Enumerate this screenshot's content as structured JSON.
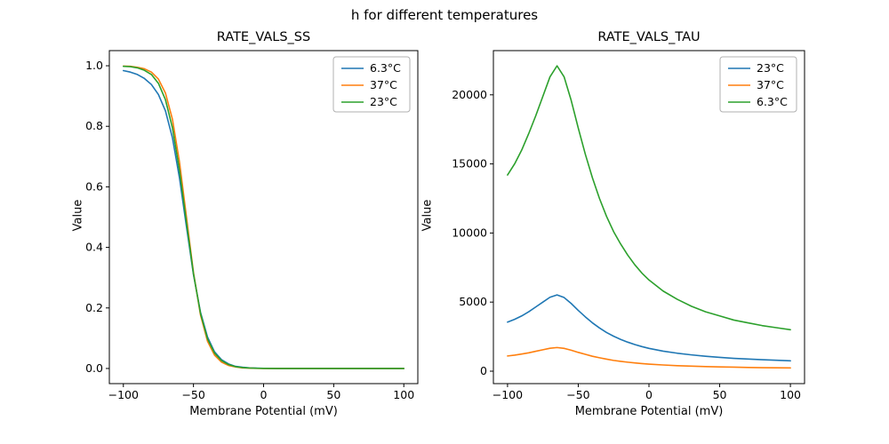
{
  "figure": {
    "title": "h for different temperatures",
    "background": "#ffffff"
  },
  "chart_data": [
    {
      "type": "line",
      "title": "RATE_VALS_SS",
      "xlabel": "Membrane Potential (mV)",
      "ylabel": "Value",
      "xlim": [
        -110,
        110
      ],
      "ylim": [
        -0.05,
        1.05
      ],
      "xticks": [
        -100,
        -50,
        0,
        50,
        100
      ],
      "xtick_labels": [
        "−100",
        "−50",
        "0",
        "50",
        "100"
      ],
      "yticks": [
        0.0,
        0.2,
        0.4,
        0.6,
        0.8,
        1.0
      ],
      "ytick_labels": [
        "0.0",
        "0.2",
        "0.4",
        "0.6",
        "0.8",
        "1.0"
      ],
      "legend_location": "upper right",
      "grid": false,
      "x": [
        -100,
        -95,
        -90,
        -85,
        -80,
        -75,
        -70,
        -65,
        -60,
        -55,
        -50,
        -45,
        -40,
        -35,
        -30,
        -25,
        -20,
        -15,
        -10,
        -5,
        0,
        10,
        20,
        30,
        40,
        50,
        60,
        70,
        80,
        90,
        100
      ],
      "series": [
        {
          "name": "6.3°C",
          "color": "#1f77b4",
          "values": [
            0.984,
            0.979,
            0.971,
            0.958,
            0.938,
            0.905,
            0.851,
            0.762,
            0.63,
            0.468,
            0.31,
            0.186,
            0.104,
            0.055,
            0.029,
            0.015,
            0.007,
            0.004,
            0.002,
            0.001,
            0.0005,
            0.0001,
            0,
            0,
            0,
            0,
            0,
            0,
            0,
            0,
            0
          ]
        },
        {
          "name": "37°C",
          "color": "#ff7f0e",
          "values": [
            0.999,
            0.998,
            0.995,
            0.99,
            0.979,
            0.956,
            0.91,
            0.823,
            0.683,
            0.5,
            0.317,
            0.177,
            0.09,
            0.044,
            0.021,
            0.01,
            0.005,
            0.002,
            0.001,
            0.0005,
            0.0002,
            0,
            0,
            0,
            0,
            0,
            0,
            0,
            0,
            0,
            0
          ]
        },
        {
          "name": "23°C",
          "color": "#2ca02c",
          "values": [
            0.998,
            0.997,
            0.993,
            0.985,
            0.971,
            0.942,
            0.888,
            0.795,
            0.655,
            0.482,
            0.313,
            0.182,
            0.098,
            0.051,
            0.026,
            0.013,
            0.006,
            0.003,
            0.0015,
            0.0007,
            0.0004,
            0.0001,
            0,
            0,
            0,
            0,
            0,
            0,
            0,
            0,
            0
          ]
        }
      ]
    },
    {
      "type": "line",
      "title": "RATE_VALS_TAU",
      "xlabel": "Membrane Potential (mV)",
      "ylabel": "Value",
      "xlim": [
        -110,
        110
      ],
      "ylim": [
        -900,
        23200
      ],
      "xticks": [
        -100,
        -50,
        0,
        50,
        100
      ],
      "xtick_labels": [
        "−100",
        "−50",
        "0",
        "50",
        "100"
      ],
      "yticks": [
        0,
        5000,
        10000,
        15000,
        20000
      ],
      "ytick_labels": [
        "0",
        "5000",
        "10000",
        "15000",
        "20000"
      ],
      "legend_location": "upper right",
      "grid": false,
      "x": [
        -100,
        -95,
        -90,
        -85,
        -80,
        -75,
        -70,
        -65,
        -60,
        -55,
        -50,
        -45,
        -40,
        -35,
        -30,
        -25,
        -20,
        -15,
        -10,
        -5,
        0,
        10,
        20,
        30,
        40,
        50,
        60,
        70,
        80,
        90,
        100
      ],
      "series": [
        {
          "name": "23°C",
          "color": "#1f77b4",
          "values": [
            3550,
            3750,
            4000,
            4300,
            4650,
            5000,
            5350,
            5520,
            5330,
            4900,
            4400,
            3930,
            3500,
            3130,
            2800,
            2530,
            2300,
            2100,
            1930,
            1780,
            1650,
            1450,
            1300,
            1180,
            1080,
            1000,
            930,
            880,
            830,
            790,
            750
          ]
        },
        {
          "name": "37°C",
          "color": "#ff7f0e",
          "values": [
            1100,
            1160,
            1240,
            1330,
            1440,
            1550,
            1660,
            1710,
            1650,
            1520,
            1360,
            1220,
            1080,
            970,
            870,
            780,
            710,
            650,
            600,
            550,
            510,
            450,
            400,
            365,
            335,
            310,
            290,
            270,
            255,
            245,
            235
          ]
        },
        {
          "name": "6.3°C",
          "color": "#2ca02c",
          "values": [
            14200,
            15000,
            16000,
            17200,
            18500,
            19900,
            21300,
            22100,
            21300,
            19600,
            17600,
            15700,
            14000,
            12500,
            11200,
            10100,
            9200,
            8400,
            7700,
            7100,
            6600,
            5800,
            5200,
            4700,
            4300,
            4000,
            3700,
            3500,
            3300,
            3150,
            3000
          ]
        }
      ]
    }
  ]
}
